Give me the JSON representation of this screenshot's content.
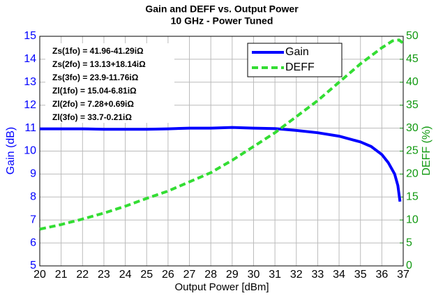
{
  "chart_data": {
    "type": "line",
    "title": "Gain and DEFF vs. Output Power",
    "subtitle": "10 GHz - Power Tuned",
    "x_label": "Output Power [dBm]",
    "y_label": "Gain (dB)",
    "y2_label": "DEFF (%)",
    "xlim": [
      20,
      37
    ],
    "xticks": [
      20,
      21,
      22,
      23,
      24,
      25,
      26,
      27,
      28,
      29,
      30,
      31,
      32,
      33,
      34,
      35,
      36,
      37
    ],
    "ylim": [
      5,
      15
    ],
    "yticks": [
      5,
      6,
      7,
      8,
      9,
      10,
      11,
      12,
      13,
      14,
      15
    ],
    "y2lim": [
      0,
      50
    ],
    "y2ticks": [
      0,
      5,
      10,
      15,
      20,
      25,
      30,
      35,
      40,
      45,
      50
    ],
    "grid": true,
    "legend": "northeast",
    "annotations": [
      "Zs(1fo) = 41.96-41.29iΩ",
      "Zs(2fo) = 13.13+18.14iΩ",
      "Zs(3fo) = 23.9-11.76iΩ",
      "Zl(1fo) = 15.04-6.81iΩ",
      "Zl(2fo) = 7.28+0.69iΩ",
      "Zl(3fo) = 33.7-0.21iΩ"
    ],
    "series": [
      {
        "name": "Gain",
        "color": "#0000ff",
        "dash": false,
        "axis": "y",
        "x": [
          20,
          21,
          22,
          23,
          24,
          25,
          26,
          27,
          28,
          29,
          30,
          31,
          32,
          33,
          34,
          35,
          35.5,
          36,
          36.3,
          36.6,
          36.75,
          36.85
        ],
        "values": [
          10.97,
          10.97,
          10.97,
          10.95,
          10.95,
          10.95,
          10.97,
          11.0,
          11.0,
          11.03,
          11.0,
          10.98,
          10.9,
          10.8,
          10.65,
          10.4,
          10.2,
          9.85,
          9.5,
          9.0,
          8.5,
          7.8
        ]
      },
      {
        "name": "DEFF",
        "color": "#33dd33",
        "dash": true,
        "axis": "y2",
        "x": [
          20,
          21,
          22,
          23,
          24,
          25,
          26,
          27,
          28,
          29,
          30,
          31,
          32,
          33,
          34,
          35,
          36,
          36.5,
          36.8,
          37
        ],
        "values": [
          8,
          9,
          10.2,
          11.5,
          13,
          14.7,
          16.3,
          18.3,
          20.3,
          23,
          26,
          29,
          32.5,
          36,
          40,
          44,
          47.5,
          49,
          49.2,
          48.5
        ]
      }
    ]
  }
}
